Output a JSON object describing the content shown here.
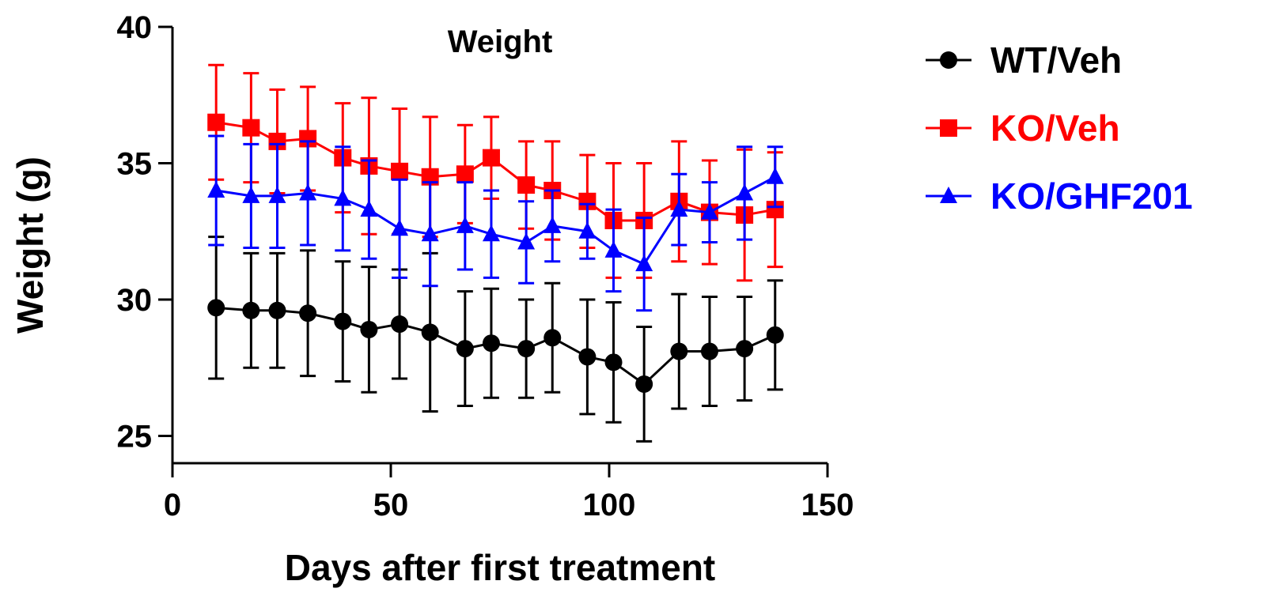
{
  "chart_data": {
    "type": "line",
    "title": "Weight",
    "xlabel": "Days after first treatment",
    "ylabel": "Weight (g)",
    "xlim": [
      0,
      150
    ],
    "ylim": [
      24,
      40
    ],
    "xticks": [
      0,
      50,
      100,
      150
    ],
    "yticks": [
      25,
      30,
      35,
      40
    ],
    "xtick_labels": [
      "0",
      "50",
      "100",
      "150"
    ],
    "ytick_labels": [
      "25",
      "30",
      "35",
      "40"
    ],
    "legend_position": "right",
    "error_bars": "SD",
    "x": [
      10,
      18,
      24,
      31,
      39,
      45,
      52,
      59,
      67,
      73,
      81,
      87,
      95,
      101,
      108,
      116,
      123,
      131,
      138
    ],
    "series": [
      {
        "name": "WT/Veh",
        "color": "#000000",
        "marker": "circle",
        "values": [
          29.7,
          29.6,
          29.6,
          29.5,
          29.2,
          28.9,
          29.1,
          28.8,
          28.2,
          28.4,
          28.2,
          28.6,
          27.9,
          27.7,
          26.9,
          28.1,
          28.1,
          28.2,
          28.7
        ],
        "errors": [
          2.6,
          2.1,
          2.1,
          2.3,
          2.2,
          2.3,
          2.0,
          2.9,
          2.1,
          2.0,
          1.8,
          2.0,
          2.1,
          2.2,
          2.1,
          2.1,
          2.0,
          1.9,
          2.0
        ]
      },
      {
        "name": "KO/Veh",
        "color": "#ff0000",
        "marker": "square",
        "values": [
          36.5,
          36.3,
          35.8,
          35.9,
          35.2,
          34.9,
          34.7,
          34.5,
          34.6,
          35.2,
          34.2,
          34.0,
          33.6,
          32.9,
          32.9,
          33.6,
          33.2,
          33.1,
          33.3
        ],
        "errors": [
          2.1,
          2.0,
          1.9,
          1.9,
          2.0,
          2.5,
          2.3,
          2.2,
          1.8,
          1.5,
          1.6,
          1.8,
          1.7,
          2.1,
          2.1,
          2.2,
          1.9,
          2.4,
          2.1
        ]
      },
      {
        "name": "KO/GHF201",
        "color": "#0000ff",
        "marker": "triangle",
        "values": [
          34.0,
          33.8,
          33.8,
          33.9,
          33.7,
          33.3,
          32.6,
          32.4,
          32.7,
          32.4,
          32.1,
          32.7,
          32.5,
          31.8,
          31.3,
          33.3,
          33.2,
          33.9,
          34.5
        ],
        "errors": [
          2.0,
          1.9,
          1.9,
          1.9,
          1.9,
          1.8,
          1.8,
          1.9,
          1.6,
          1.6,
          1.5,
          1.3,
          1.0,
          1.5,
          1.7,
          1.3,
          1.1,
          1.7,
          1.1
        ]
      }
    ]
  }
}
